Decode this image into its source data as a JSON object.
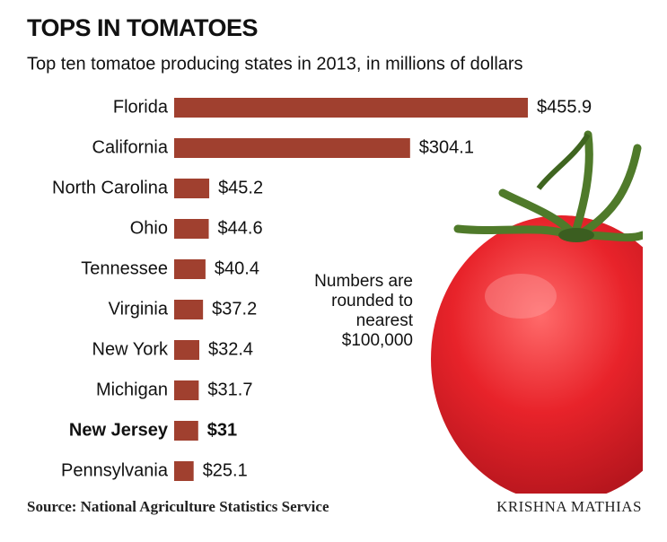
{
  "chart_data": {
    "type": "bar",
    "orientation": "horizontal",
    "title": "TOPS IN TOMATOES",
    "subtitle": "Top ten tomatoe producing states in 2013, in millions of dollars",
    "categories": [
      "Florida",
      "California",
      "North Carolina",
      "Ohio",
      "Tennessee",
      "Virginia",
      "New York",
      "Michigan",
      "New Jersey",
      "Pennsylvania"
    ],
    "values": [
      455.9,
      304.1,
      45.2,
      44.6,
      40.4,
      37.2,
      32.4,
      31.7,
      31,
      25.1
    ],
    "value_labels": [
      "$455.9",
      "$304.1",
      "$45.2",
      "$44.6",
      "$40.4",
      "$37.2",
      "$32.4",
      "$31.7",
      "$31",
      "$25.1"
    ],
    "color": "#a0402f",
    "highlight_index": 8,
    "annotation": "Numbers are rounded to nearest $100,000",
    "source": "Source: National Agriculture Statistics Service",
    "credit": "KRISHNA MATHIAS"
  }
}
